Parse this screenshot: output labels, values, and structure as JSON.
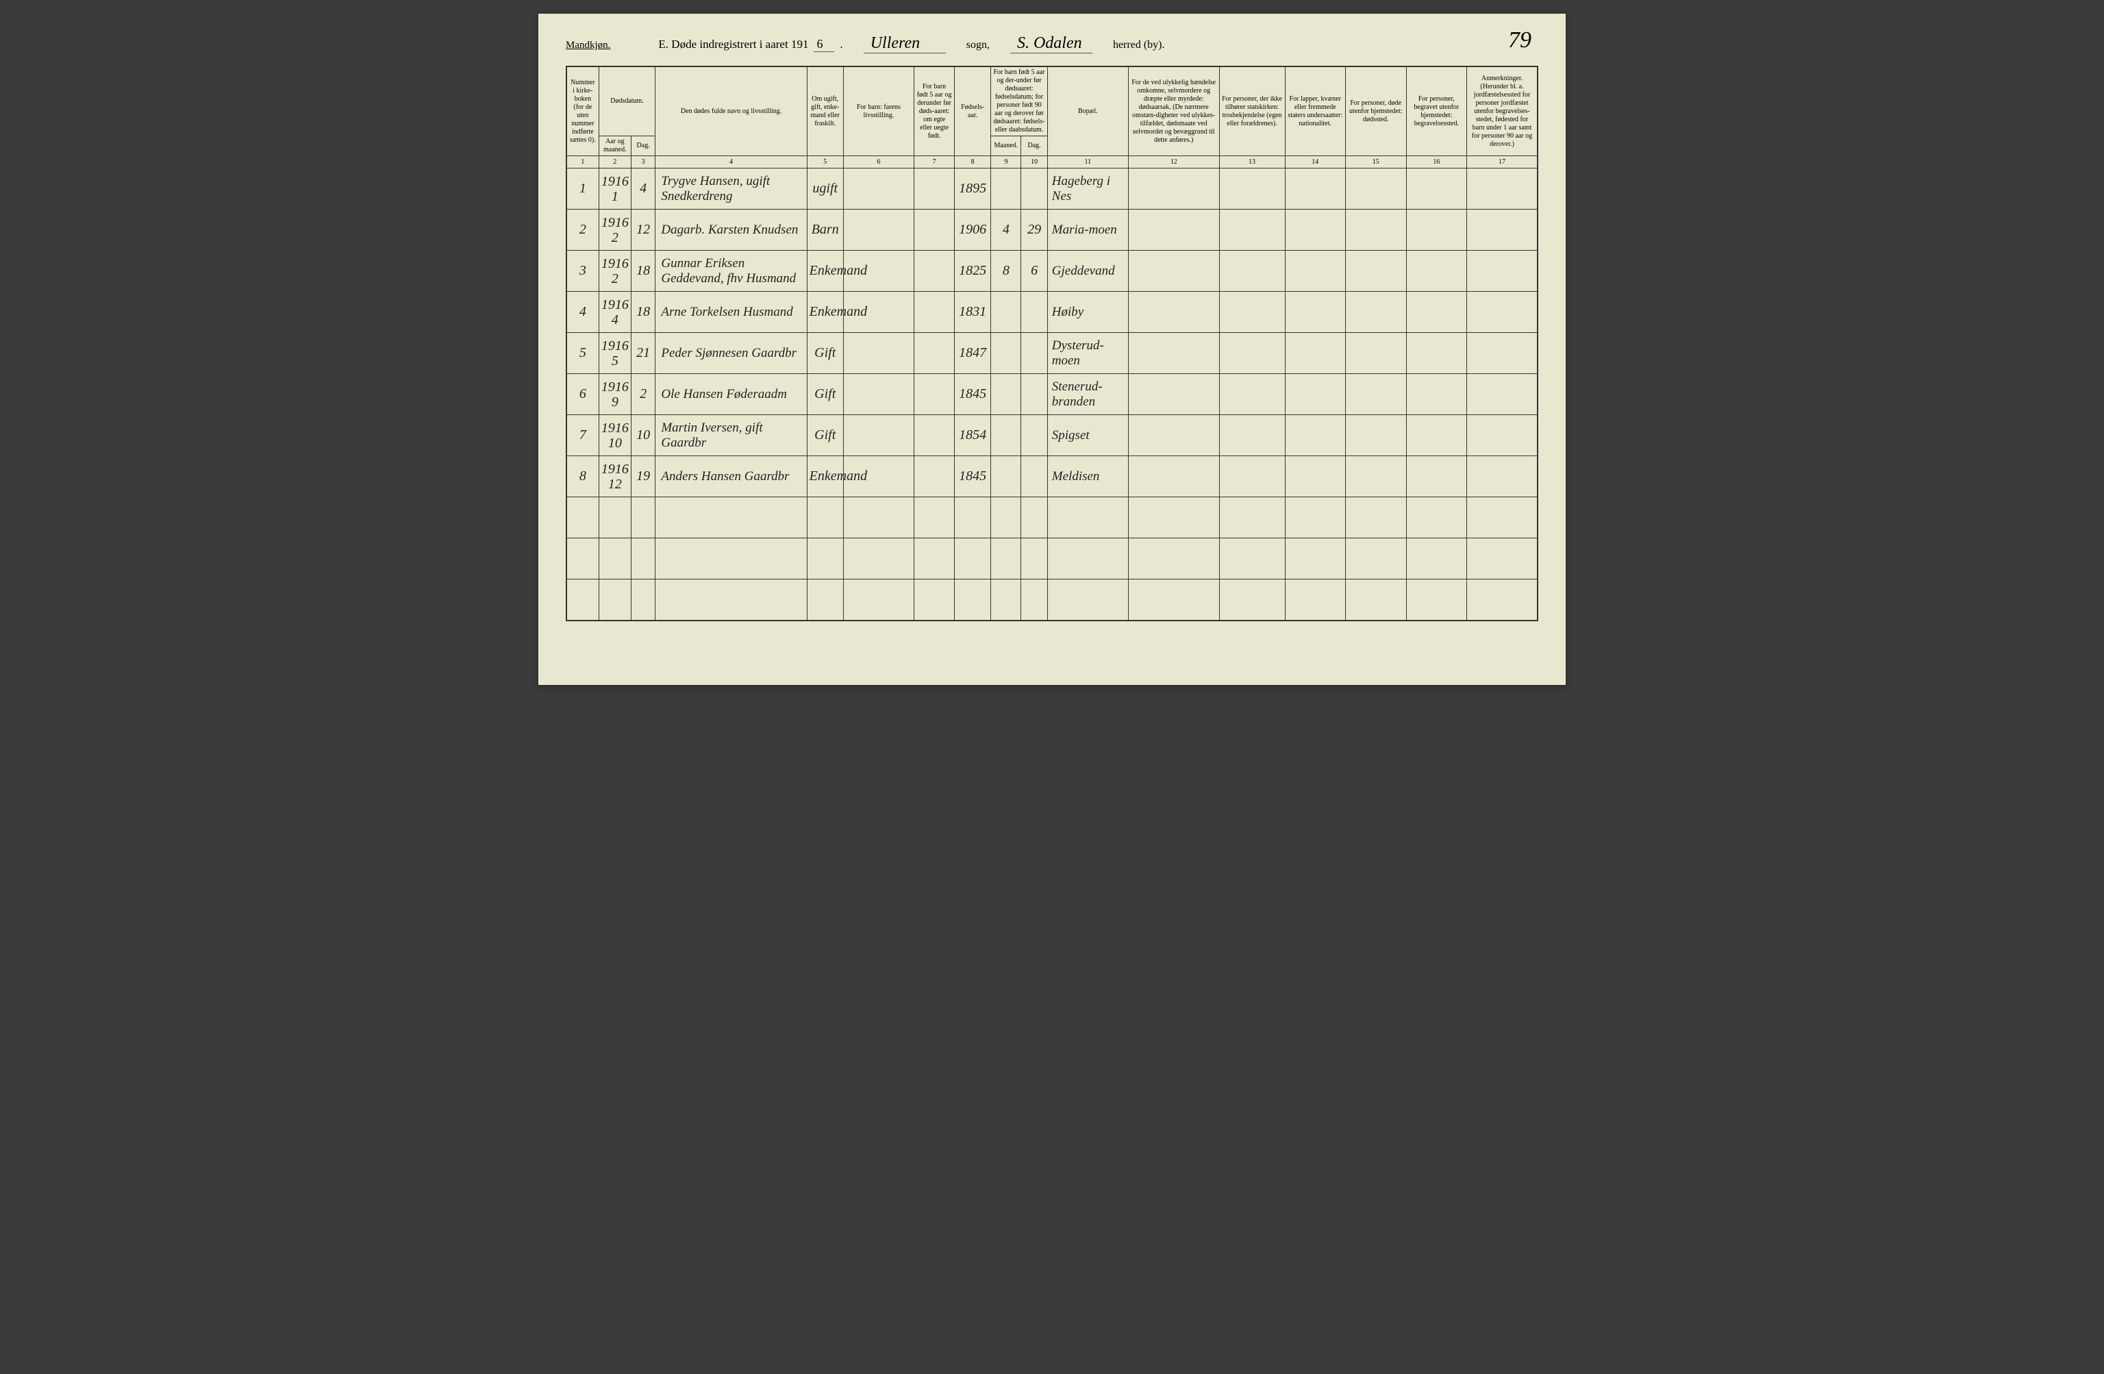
{
  "header": {
    "gender": "Mandkjøn.",
    "title_prefix": "E.   Døde indregistrert i aaret 191",
    "year_suffix": "6",
    "sogn_value": "Ulleren",
    "sogn_label": "sogn,",
    "herred_value": "S. Odalen",
    "herred_label": "herred (by).",
    "page_number": "79"
  },
  "columns": {
    "h1": "Nummer i kirke-boken (for de uten nummer indførte sættes 0).",
    "h2_top": "Dødsdatum.",
    "h2a": "Aar og maaned.",
    "h2b": "Dag.",
    "h4": "Den dødes fulde navn og livsstilling.",
    "h5": "Om ugift, gift, enke-mand eller fraskilt.",
    "h6": "For barn: farens livsstilling.",
    "h7": "For barn født 5 aar og derunder før døds-aaret: om egte eller uegte født.",
    "h8": "Fødsels-aar.",
    "h9_top": "For barn født 5 aar og der-under før dødsaaret: fødselsdatum; for personer født 90 aar og derover før dødsaaret: fødsels- eller daabsdatum.",
    "h9a": "Maaned.",
    "h9b": "Dag.",
    "h11": "Bopæl.",
    "h12": "For de ved ulykkelig hændelse omkomne, selvmordere og dræpte eller myrdede: dødsaarsak. (De nærmere omstæn-digheter ved ulykkes-tilfældet, dødsmaate ved selvmordet og bevæggrund til dette anføres.)",
    "h13": "For personer, der ikke tilhører statskirken: trosbekjendelse (egen eller forældrenes).",
    "h14": "For lapper, kvæner eller fremmede staters undersaatter: nationalitet.",
    "h15": "For personer, døde utenfor hjemstedet: dødssted.",
    "h16": "For personer, begravet utenfor hjemstedet: begravelsessted.",
    "h17": "Anmerkninger. (Herunder bl. a. jordfæstelsessted for personer jordfæstet utenfor begravelses-stedet, fødested for barn under 1 aar samt for personer 90 aar og derover.)"
  },
  "colnums": [
    "1",
    "2",
    "3",
    "4",
    "5",
    "6",
    "7",
    "8",
    "9",
    "10",
    "11",
    "12",
    "13",
    "14",
    "15",
    "16",
    "17"
  ],
  "rows": [
    {
      "num": "1",
      "year": "1916",
      "mon": "1",
      "day": "4",
      "name": "Trygve Hansen, ugift Snedkerdreng",
      "status": "ugift",
      "c6": "",
      "c7": "",
      "birth": "1895",
      "bm": "",
      "bd": "",
      "place": "Hageberg i Nes",
      "c12": "",
      "c13": "",
      "c14": "",
      "c15": "",
      "c16": "",
      "c17": ""
    },
    {
      "num": "2",
      "year": "1916",
      "mon": "2",
      "day": "12",
      "name": "Dagarb. Karsten Knudsen",
      "status": "Barn",
      "c6": "",
      "c7": "",
      "birth": "1906",
      "bm": "4",
      "bd": "29",
      "place": "Maria-moen",
      "c12": "",
      "c13": "",
      "c14": "",
      "c15": "",
      "c16": "",
      "c17": ""
    },
    {
      "num": "3",
      "year": "1916",
      "mon": "2",
      "day": "18",
      "name": "Gunnar Eriksen Geddevand, fhv Husmand",
      "status": "Enkemand",
      "c6": "",
      "c7": "",
      "birth": "1825",
      "bm": "8",
      "bd": "6",
      "place": "Gjeddevand",
      "c12": "",
      "c13": "",
      "c14": "",
      "c15": "",
      "c16": "",
      "c17": ""
    },
    {
      "num": "4",
      "year": "1916",
      "mon": "4",
      "day": "18",
      "name": "Arne Torkelsen Husmand",
      "status": "Enkemand",
      "c6": "",
      "c7": "",
      "birth": "1831",
      "bm": "",
      "bd": "",
      "place": "Høiby",
      "c12": "",
      "c13": "",
      "c14": "",
      "c15": "",
      "c16": "",
      "c17": ""
    },
    {
      "num": "5",
      "year": "1916",
      "mon": "5",
      "day": "21",
      "name": "Peder Sjønnesen Gaardbr",
      "status": "Gift",
      "c6": "",
      "c7": "",
      "birth": "1847",
      "bm": "",
      "bd": "",
      "place": "Dysterud-moen",
      "c12": "",
      "c13": "",
      "c14": "",
      "c15": "",
      "c16": "",
      "c17": ""
    },
    {
      "num": "6",
      "year": "1916",
      "mon": "9",
      "day": "2",
      "name": "Ole Hansen Føderaadm",
      "status": "Gift",
      "c6": "",
      "c7": "",
      "birth": "1845",
      "bm": "",
      "bd": "",
      "place": "Stenerud-branden",
      "c12": "",
      "c13": "",
      "c14": "",
      "c15": "",
      "c16": "",
      "c17": ""
    },
    {
      "num": "7",
      "year": "1916",
      "mon": "10",
      "day": "10",
      "name": "Martin Iversen, gift Gaardbr",
      "status": "Gift",
      "c6": "",
      "c7": "",
      "birth": "1854",
      "bm": "",
      "bd": "",
      "place": "Spigset",
      "c12": "",
      "c13": "",
      "c14": "",
      "c15": "",
      "c16": "",
      "c17": ""
    },
    {
      "num": "8",
      "year": "1916",
      "mon": "12",
      "day": "19",
      "name": "Anders Hansen Gaardbr",
      "status": "Enkemand",
      "c6": "",
      "c7": "",
      "birth": "1845",
      "bm": "",
      "bd": "",
      "place": "Meldisen",
      "c12": "",
      "c13": "",
      "c14": "",
      "c15": "",
      "c16": "",
      "c17": ""
    }
  ],
  "empty_rows": 3,
  "colors": {
    "paper": "#e8e8d0",
    "ink": "#222222",
    "border": "#333333"
  }
}
